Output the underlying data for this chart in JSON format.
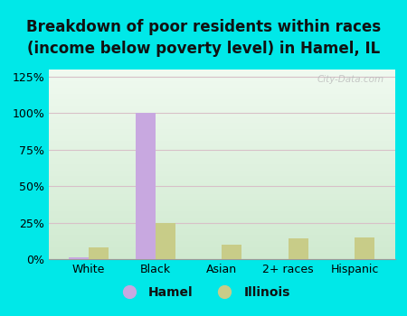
{
  "title": "Breakdown of poor residents within races\n(income below poverty level) in Hamel, IL",
  "categories": [
    "White",
    "Black",
    "Asian",
    "2+ races",
    "Hispanic"
  ],
  "hamel_values": [
    1.0,
    100.0,
    0.0,
    0.0,
    0.0
  ],
  "illinois_values": [
    8.0,
    25.0,
    10.0,
    14.0,
    15.0
  ],
  "hamel_color": "#c8a8e0",
  "illinois_color": "#c8cc88",
  "bg_color": "#00e8e8",
  "plot_bg_top": "#f0faf0",
  "plot_bg_bottom": "#d0ead0",
  "grid_color": "#d8c0c8",
  "yticks": [
    0,
    25,
    50,
    75,
    100,
    125
  ],
  "ylim": [
    0,
    130
  ],
  "bar_width": 0.3,
  "title_fontsize": 12,
  "axis_fontsize": 9,
  "legend_fontsize": 10,
  "watermark": "City-Data.com"
}
